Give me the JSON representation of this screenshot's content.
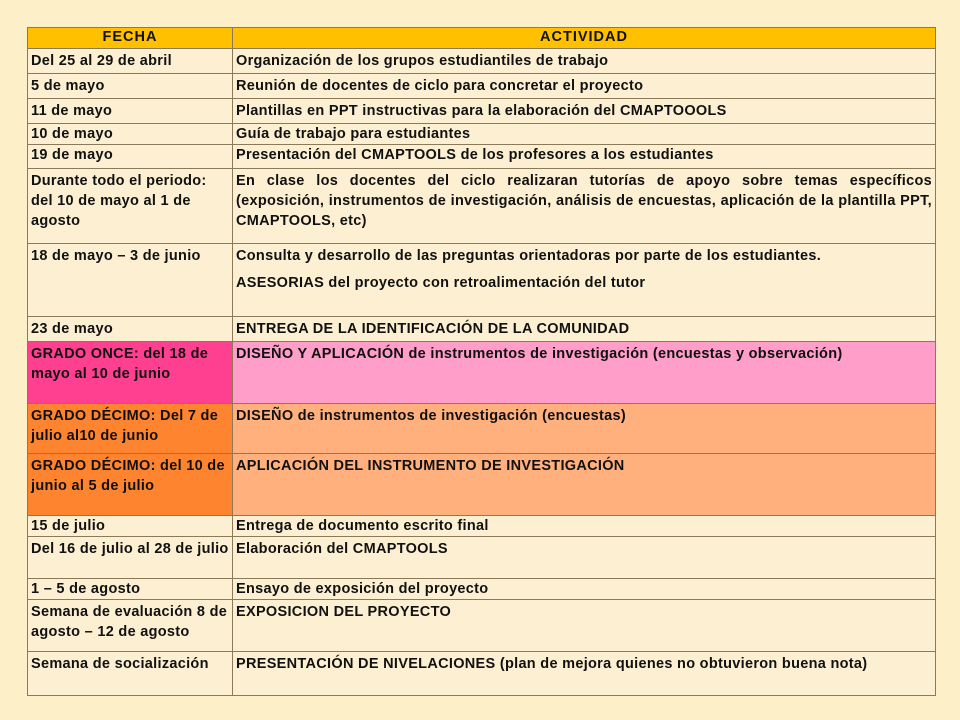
{
  "table": {
    "headers": {
      "fecha": "FECHA",
      "actividad": "ACTIVIDAD"
    },
    "rows": [
      {
        "fecha": "Del 25 al 29 de abril",
        "actividad": "Organización de los grupos estudiantiles de trabajo"
      },
      {
        "fecha": "5 de mayo",
        "actividad": "Reunión de docentes de ciclo para concretar el proyecto"
      },
      {
        "fecha": "11 de mayo",
        "actividad": "Plantillas en PPT instructivas para la elaboración del CMAPTOOOLS"
      },
      {
        "fecha": "10 de mayo",
        "actividad": "Guía de trabajo para estudiantes"
      },
      {
        "fecha": "19 de mayo",
        "actividad": "Presentación del CMAPTOOLS de los profesores a los estudiantes"
      },
      {
        "fecha": "Durante todo el periodo: del 10 de mayo al 1 de agosto",
        "actividad": "En clase los docentes del ciclo realizaran tutorías de apoyo sobre temas específicos (exposición, instrumentos de investigación, análisis de encuestas, aplicación de la plantilla PPT, CMAPTOOLS, etc)"
      },
      {
        "fecha": "18 de mayo – 3  de junio",
        "actividad": "Consulta y desarrollo de las preguntas orientadoras por parte de los estudiantes.",
        "actividad2": "ASESORIAS del proyecto con retroalimentación del tutor"
      },
      {
        "fecha": "23 de mayo",
        "actividad": "ENTREGA DE LA IDENTIFICACIÓN DE LA COMUNIDAD"
      },
      {
        "fecha": "GRADO ONCE: del 18 de mayo al 10 de junio",
        "actividad": "DISEÑO Y APLICACIÓN de instrumentos de investigación (encuestas y observación)"
      },
      {
        "fecha": "GRADO DÉCIMO: Del 7 de julio al10 de junio",
        "actividad": "DISEÑO de instrumentos de investigación (encuestas)"
      },
      {
        "fecha": "GRADO DÉCIMO: del 10 de junio al 5 de julio",
        "actividad": "APLICACIÓN DEL INSTRUMENTO DE INVESTIGACIÓN"
      },
      {
        "fecha": "15 de julio",
        "actividad": "Entrega de documento escrito final"
      },
      {
        "fecha": "Del 16 de julio al 28 de julio",
        "actividad": "Elaboración del CMAPTOOLS"
      },
      {
        "fecha": "1 – 5 de agosto",
        "actividad": "Ensayo de exposición del proyecto"
      },
      {
        "fecha": "Semana de evaluación 8 de agosto – 12 de agosto",
        "actividad": "EXPOSICION DEL PROYECTO"
      },
      {
        "fecha": "Semana de socialización",
        "actividad": "PRESENTACIÓN DE NIVELACIONES (plan de mejora quienes no obtuvieron buena nota)"
      }
    ]
  },
  "colors": {
    "header": "#ffc000",
    "cell": "#fdf0d2",
    "grado_once_fecha": "#ff4090",
    "grado_once_actividad": "#ff9ec8",
    "grado_decimo_fecha": "#ff8430",
    "grado_decimo_actividad": "#ffb07c"
  }
}
